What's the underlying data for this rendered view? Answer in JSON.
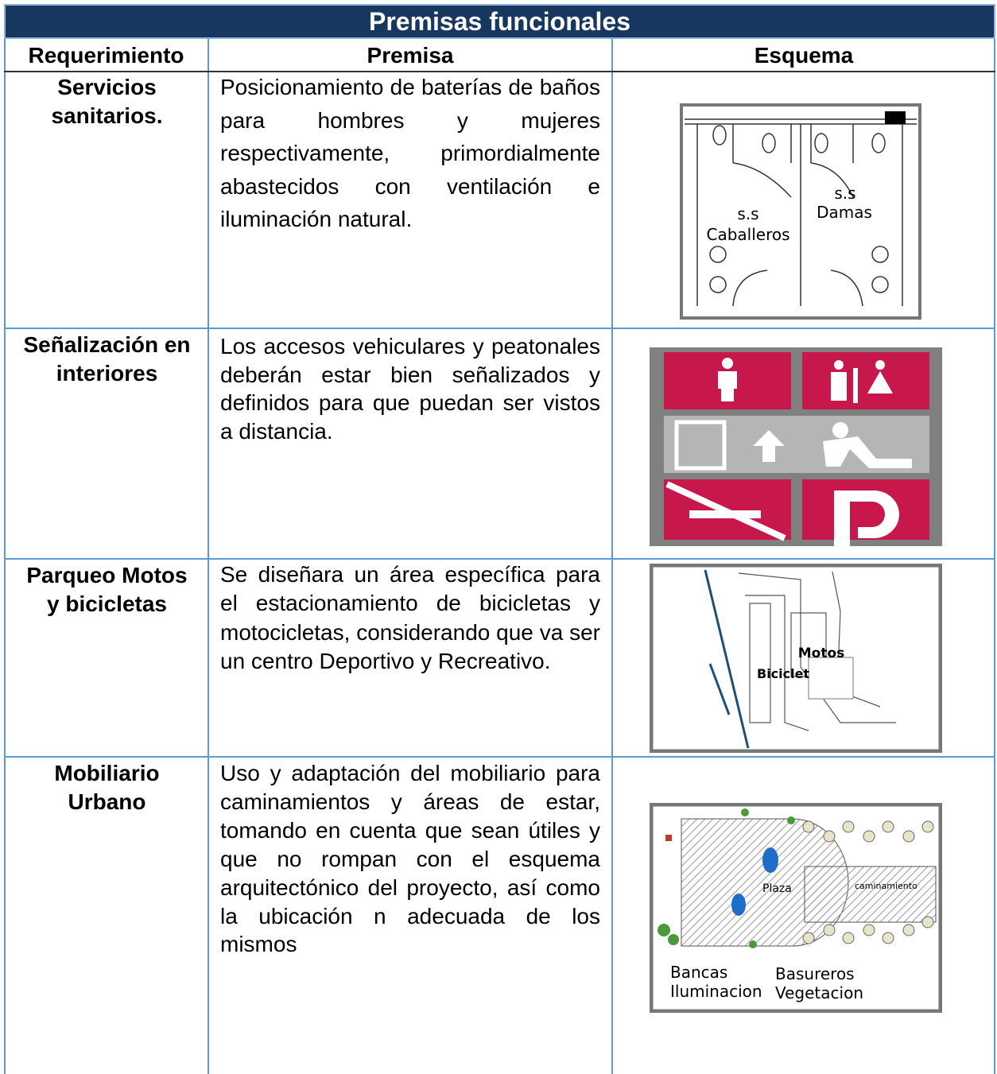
{
  "title": "Premisas funcionales",
  "table": {
    "headers": [
      "Requerimiento",
      "Premisa",
      "Esquema"
    ],
    "rows": [
      {
        "requirement": "Servicios sanitarios.",
        "premise": "Posicionamiento de baterías de baños para hombres y mujeres respectivamente, primordialmente abastecidos con ventilación e iluminación natural.",
        "diagram_labels": [
          "s.s",
          "Caballeros",
          "s.s",
          "Damas"
        ]
      },
      {
        "requirement": "Señalización en interiores",
        "premise": "Los accesos vehiculares y peatonales deberán estar bien señalizados y definidos para que puedan ser vistos a distancia."
      },
      {
        "requirement": "Parqueo Motos y bicicletas",
        "premise": "Se diseñara un área específica para el estacionamiento de bicicletas y motocicletas, considerando que va ser un centro Deportivo y Recreativo.",
        "diagram_labels": [
          "Motos",
          "Biciclet"
        ]
      },
      {
        "requirement": "Mobiliario Urbano",
        "premise": "Uso y adaptación del mobiliario para caminamientos y áreas de estar, tomando en cuenta que sean útiles y que no rompan con el esquema arquitectónico del proyecto, así como la ubicación n adecuada de los mismos",
        "diagram_labels": [
          "Plaza",
          "caminamiento",
          "Bancas",
          "Iluminacion",
          "Basureros",
          "Vegetacion"
        ]
      }
    ]
  }
}
